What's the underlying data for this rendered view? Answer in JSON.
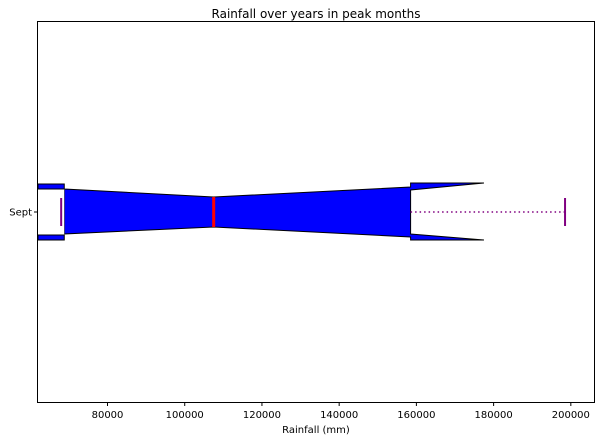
{
  "chart_data": {
    "type": "boxplot",
    "orientation": "horizontal",
    "notched": true,
    "title": "Rainfall over years in peak months",
    "xlabel": "Rainfall (mm)",
    "ylabel": "",
    "xlim": [
      62000,
      206000
    ],
    "xticks": [
      80000,
      100000,
      120000,
      140000,
      160000,
      180000,
      200000
    ],
    "xtick_labels": [
      "80000",
      "100000",
      "120000",
      "140000",
      "160000",
      "180000",
      "200000"
    ],
    "categories": [
      "Sept"
    ],
    "boxes": [
      {
        "label": "Sept",
        "q1": 68500,
        "median": 107500,
        "q3": 158500,
        "notch_low": 62000,
        "notch_high": 177500,
        "whisker_low": 68000,
        "whisker_high": 198500
      }
    ],
    "colors": {
      "box_fill": "#0000ff",
      "box_edge": "#000000",
      "median": "#ff0000",
      "whisker": "#800080",
      "cap": "#800080"
    },
    "grid": false,
    "legend": false
  }
}
